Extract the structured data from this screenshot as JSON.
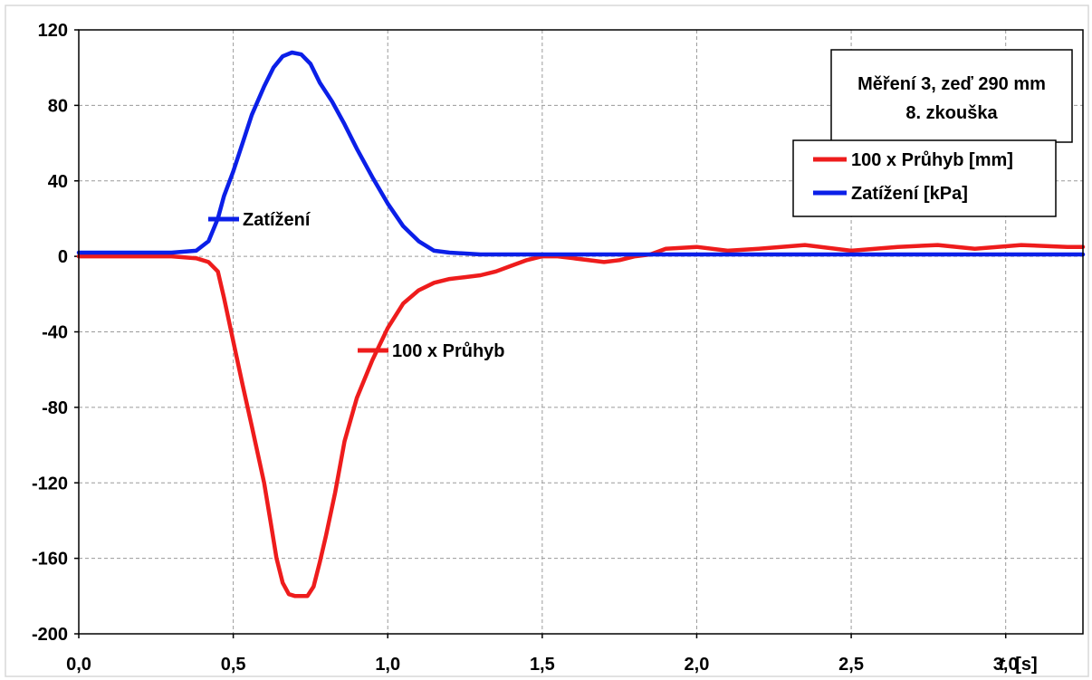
{
  "chart_data": {
    "type": "line",
    "title": "Měření 3, zeď 290 mm",
    "subtitle": "8. zkouška",
    "xlabel_italic": "t",
    "xlabel_unit": "[s]",
    "ylabel": "",
    "xlim": [
      0,
      3.25
    ],
    "ylim": [
      -200,
      120
    ],
    "x_ticks": [
      0,
      0.5,
      1.0,
      1.5,
      2.0,
      2.5,
      3.0
    ],
    "x_tick_labels": [
      "0,0",
      "0,5",
      "1,0",
      "1,5",
      "2,0",
      "2,5",
      "3,0"
    ],
    "y_ticks": [
      120,
      80,
      40,
      0,
      -40,
      -80,
      -120,
      -160,
      -200
    ],
    "y_tick_labels": [
      "120",
      "80",
      "40",
      "0",
      "-40",
      "-80",
      "-120",
      "-160",
      "-200"
    ],
    "grid": true,
    "legend_position": "top-right",
    "series": [
      {
        "name": "100 x Průhyb [mm]",
        "inline_label": "100 x Průhyb",
        "color": "#ee1c1c",
        "x": [
          0,
          0.1,
          0.2,
          0.3,
          0.38,
          0.42,
          0.45,
          0.47,
          0.5,
          0.53,
          0.56,
          0.6,
          0.62,
          0.64,
          0.66,
          0.68,
          0.7,
          0.72,
          0.74,
          0.76,
          0.78,
          0.8,
          0.83,
          0.86,
          0.9,
          0.95,
          1.0,
          1.05,
          1.1,
          1.15,
          1.2,
          1.25,
          1.3,
          1.35,
          1.4,
          1.45,
          1.5,
          1.55,
          1.6,
          1.7,
          1.75,
          1.8,
          1.85,
          1.9,
          2.0,
          2.1,
          2.2,
          2.35,
          2.5,
          2.65,
          2.78,
          2.9,
          3.05,
          3.2,
          3.25
        ],
        "values": [
          0,
          0,
          0,
          0,
          -1,
          -3,
          -8,
          -22,
          -45,
          -68,
          -90,
          -120,
          -140,
          -160,
          -173,
          -179,
          -180,
          -180,
          -180,
          -175,
          -162,
          -148,
          -125,
          -98,
          -75,
          -55,
          -38,
          -25,
          -18,
          -14,
          -12,
          -11,
          -10,
          -8,
          -5,
          -2,
          0,
          0,
          -1,
          -3,
          -2,
          0,
          1,
          4,
          5,
          3,
          4,
          6,
          3,
          5,
          6,
          4,
          6,
          5,
          5
        ]
      },
      {
        "name": "Zatížení [kPa]",
        "inline_label": "Zatížení",
        "color": "#0b1fe8",
        "x": [
          0,
          0.2,
          0.3,
          0.38,
          0.42,
          0.45,
          0.47,
          0.5,
          0.53,
          0.56,
          0.6,
          0.63,
          0.66,
          0.69,
          0.72,
          0.75,
          0.78,
          0.82,
          0.86,
          0.9,
          0.95,
          1.0,
          1.05,
          1.1,
          1.15,
          1.2,
          1.3,
          1.4,
          1.5,
          1.7,
          2.0,
          2.5,
          3.0,
          3.25
        ],
        "values": [
          2,
          2,
          2,
          3,
          8,
          20,
          32,
          45,
          60,
          75,
          90,
          100,
          106,
          108,
          107,
          102,
          92,
          82,
          70,
          57,
          42,
          28,
          16,
          8,
          3,
          2,
          1,
          1,
          1,
          1,
          1,
          1,
          1,
          1
        ]
      }
    ]
  }
}
